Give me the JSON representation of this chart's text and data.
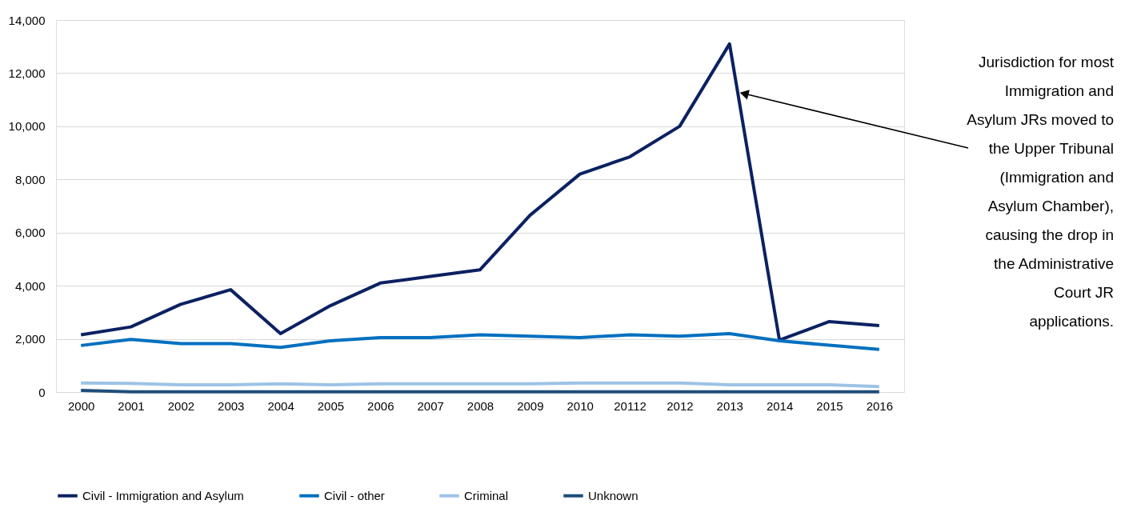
{
  "chart_data": {
    "type": "line",
    "categories": [
      "2000",
      "2001",
      "2002",
      "2003",
      "2004",
      "2005",
      "2006",
      "2007",
      "2008",
      "2009",
      "2010",
      "20112",
      "2012",
      "2013",
      "2014",
      "2015",
      "2016"
    ],
    "series": [
      {
        "name": "Civil - Immigration and Asylum",
        "color": "#0b2161",
        "values": [
          2150,
          2450,
          3300,
          3850,
          2200,
          3250,
          4100,
          4350,
          4600,
          6650,
          8200,
          8850,
          10000,
          13100,
          1950,
          2650,
          2500
        ]
      },
      {
        "name": "Civil - other",
        "color": "#0070c0",
        "values": [
          1750,
          1980,
          1820,
          1820,
          1680,
          1930,
          2050,
          2050,
          2150,
          2100,
          2050,
          2150,
          2100,
          2200,
          1930,
          1760,
          1600
        ]
      },
      {
        "name": "Criminal",
        "color": "#9dc3e6",
        "values": [
          340,
          320,
          270,
          270,
          310,
          270,
          310,
          310,
          310,
          310,
          340,
          340,
          340,
          270,
          270,
          270,
          200
        ]
      },
      {
        "name": "Unknown",
        "color": "#1f4e79",
        "values": [
          60,
          10,
          10,
          10,
          10,
          10,
          10,
          10,
          10,
          10,
          10,
          10,
          10,
          10,
          10,
          10,
          10
        ]
      }
    ],
    "ylim": [
      0,
      14000
    ],
    "yticks": [
      0,
      {
        "value": 2000,
        "label": "2,000"
      },
      {
        "value": 4000,
        "label": "4,000"
      },
      {
        "value": 6000,
        "label": "6,000"
      },
      {
        "value": 8000,
        "label": "8,000"
      },
      {
        "value": 10000,
        "label": "10,000"
      },
      {
        "value": 12000,
        "label": "12,000"
      },
      {
        "value": 14000,
        "label": "14,000"
      }
    ],
    "grid": "y",
    "legend": "bottom",
    "marker": "none",
    "line_style": "solid",
    "annotations": [
      "Jurisdiction for most Immigration and Asylum JRs moved to the Upper Tribunal (Immigration and Asylum Chamber), causing the drop in the Administrative Court JR applications."
    ]
  }
}
